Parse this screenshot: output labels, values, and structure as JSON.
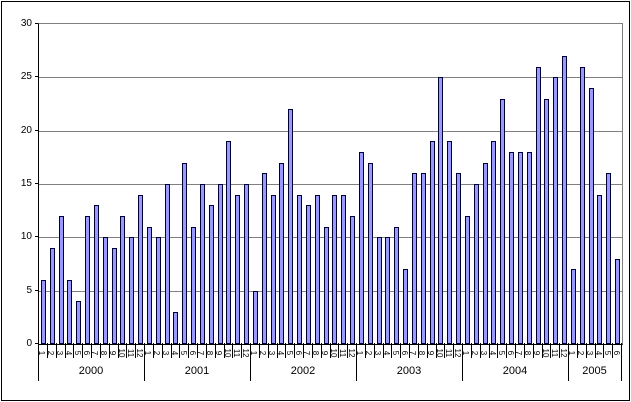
{
  "chart_data": {
    "type": "bar",
    "title": "",
    "xlabel": "",
    "ylabel": "",
    "ylim": [
      0,
      30
    ],
    "ytick_interval": 5,
    "yticks": [
      "30",
      "25",
      "20",
      "15",
      "10",
      "5",
      "0"
    ],
    "grid": true,
    "legend": false,
    "colors": {
      "bar_fill": "#9999FF",
      "bar_border": "#000033",
      "gridline": "#808080",
      "axis": "#000000",
      "plot_right_border": "#808080",
      "background": "#FFFFFF"
    },
    "groups": [
      {
        "year": "2000",
        "months": [
          "1",
          "2",
          "3",
          "4",
          "5",
          "6",
          "7",
          "8",
          "9",
          "10",
          "11",
          "12"
        ],
        "values": [
          6,
          9,
          12,
          6,
          4,
          12,
          13,
          10,
          9,
          12,
          10,
          14
        ]
      },
      {
        "year": "2001",
        "months": [
          "1",
          "2",
          "3",
          "4",
          "5",
          "6",
          "7",
          "8",
          "9",
          "10",
          "11",
          "12"
        ],
        "values": [
          11,
          10,
          15,
          3,
          17,
          11,
          15,
          13,
          15,
          19,
          14,
          15
        ]
      },
      {
        "year": "2002",
        "months": [
          "1",
          "2",
          "3",
          "4",
          "5",
          "6",
          "7",
          "8",
          "9",
          "10",
          "11",
          "12"
        ],
        "values": [
          5,
          16,
          14,
          17,
          22,
          14,
          13,
          14,
          11,
          14,
          14,
          12
        ]
      },
      {
        "year": "2003",
        "months": [
          "1",
          "2",
          "3",
          "4",
          "5",
          "6",
          "7",
          "8",
          "9",
          "10",
          "11",
          "12"
        ],
        "values": [
          18,
          17,
          10,
          10,
          11,
          7,
          16,
          16,
          19,
          25,
          19,
          16
        ]
      },
      {
        "year": "2004",
        "months": [
          "1",
          "2",
          "3",
          "4",
          "5",
          "6",
          "7",
          "8",
          "9",
          "10",
          "11",
          "12"
        ],
        "values": [
          12,
          15,
          17,
          19,
          23,
          18,
          18,
          18,
          26,
          23,
          25,
          27
        ]
      },
      {
        "year": "2005",
        "months": [
          "1",
          "2",
          "3",
          "4",
          "5",
          "6"
        ],
        "values": [
          7,
          26,
          24,
          14,
          16,
          8
        ]
      }
    ]
  }
}
